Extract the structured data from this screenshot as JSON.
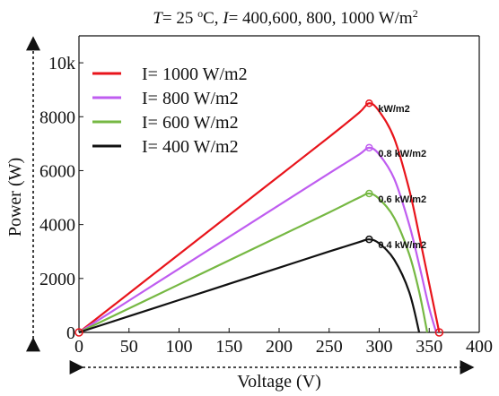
{
  "chart_data": {
    "type": "line",
    "title": "T= 25 oC, I= 400,600, 800, 1000 W/m2",
    "xlabel": "Voltage (V)",
    "ylabel": "Power (W)",
    "xlim": [
      0,
      400
    ],
    "ylim": [
      0,
      11000
    ],
    "xticks": [
      0,
      50,
      100,
      150,
      200,
      250,
      300,
      350,
      400
    ],
    "yticks": [
      0,
      2000,
      4000,
      6000,
      8000,
      10000
    ],
    "ytick_labels": [
      "0",
      "2000",
      "4000",
      "6000",
      "8000",
      "10k"
    ],
    "grid": false,
    "legend_position": "top-left",
    "series": [
      {
        "name": "I= 1000 W/m2",
        "color": "#e8141b",
        "mpp_label": "kW/m2",
        "x": [
          0,
          50,
          100,
          150,
          200,
          250,
          280,
          290,
          300,
          315,
          330,
          340,
          350,
          360
        ],
        "y": [
          0,
          1450,
          2900,
          4350,
          5800,
          7250,
          8150,
          8500,
          8200,
          7200,
          5300,
          3600,
          1800,
          0
        ]
      },
      {
        "name": "I= 800 W/m2",
        "color": "#bf5df0",
        "mpp_label": "0.8 kW/m2",
        "x": [
          0,
          50,
          100,
          150,
          200,
          250,
          280,
          290,
          300,
          315,
          330,
          340,
          350,
          357
        ],
        "y": [
          0,
          1180,
          2360,
          3540,
          4720,
          5900,
          6600,
          6850,
          6600,
          5700,
          4000,
          2500,
          900,
          0
        ]
      },
      {
        "name": "I= 600 W/m2",
        "color": "#76b843",
        "mpp_label": "0.6 kW/m2",
        "x": [
          0,
          50,
          100,
          150,
          200,
          250,
          280,
          290,
          300,
          315,
          330,
          340,
          348
        ],
        "y": [
          0,
          890,
          1780,
          2670,
          3560,
          4450,
          5000,
          5150,
          4950,
          4250,
          2900,
          1500,
          0
        ]
      },
      {
        "name": "I= 400 W/m2",
        "color": "#111111",
        "mpp_label": "0.4 kW/m2",
        "x": [
          0,
          50,
          100,
          150,
          200,
          250,
          280,
          290,
          300,
          315,
          330,
          340
        ],
        "y": [
          0,
          600,
          1200,
          1800,
          2400,
          3000,
          3350,
          3450,
          3300,
          2700,
          1500,
          0
        ]
      }
    ]
  }
}
